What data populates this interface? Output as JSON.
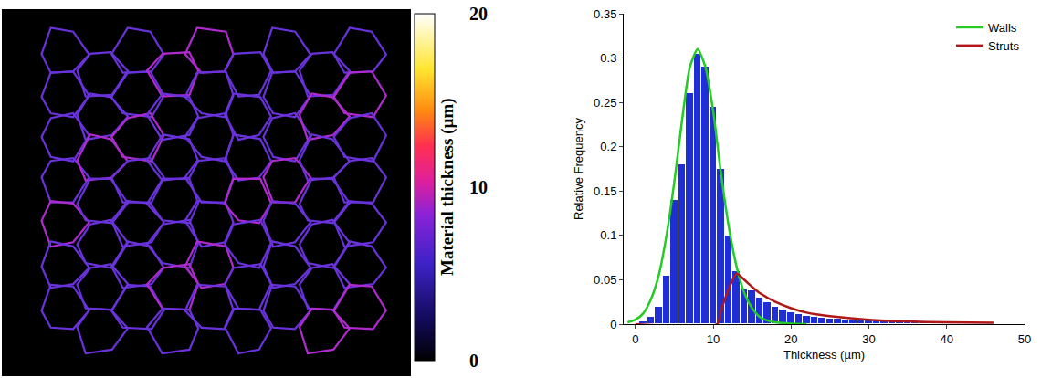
{
  "chart_data": [
    {
      "type": "image",
      "colorbar": {
        "title": "Material thickness (µm)",
        "range": [
          0,
          20
        ],
        "ticks": [
          0,
          10,
          20
        ]
      }
    },
    {
      "type": "histogram",
      "x_label": "Thickness (µm)",
      "y_label": "Relative Frequency",
      "color": "#1f2fd4",
      "bins": [
        0.5,
        1.5,
        2.5,
        3.5,
        4.5,
        5.5,
        6.5,
        7.5,
        8.5,
        9.5,
        10.5,
        11.5,
        12.5,
        13.5,
        14.5,
        15.5,
        16.5,
        17.5,
        18.5,
        19.5,
        20.5,
        21.5,
        22.5,
        23.5,
        24.5,
        25.5,
        26.5,
        27.5,
        28.5,
        29.5,
        30.5,
        31.5,
        32.5,
        33.5,
        34.5,
        35.5,
        36.5,
        37.5,
        38.5,
        39.5,
        40.5,
        41.5,
        42.5,
        43.5,
        44.5,
        45.5,
        46.5
      ],
      "values": [
        0.003,
        0.008,
        0.02,
        0.055,
        0.14,
        0.18,
        0.26,
        0.305,
        0.29,
        0.245,
        0.175,
        0.1,
        0.06,
        0.04,
        0.038,
        0.03,
        0.025,
        0.02,
        0.016,
        0.013,
        0.011,
        0.009,
        0.008,
        0.007,
        0.006,
        0.006,
        0.005,
        0.005,
        0.004,
        0.004,
        0.004,
        0.003,
        0.003,
        0.003,
        0.003,
        0.002,
        0.002,
        0.002,
        0.002,
        0.002,
        0.002,
        0.002,
        0.001,
        0.001,
        0.001,
        0.001
      ],
      "series": [
        {
          "name": "Walls",
          "type": "line",
          "color": "#22cc22",
          "x": [
            -1,
            0,
            1,
            2,
            3,
            4,
            5,
            6,
            7,
            8,
            9,
            10,
            11,
            12,
            13,
            14,
            15,
            16,
            17,
            18,
            20,
            22
          ],
          "values": [
            0.002,
            0.005,
            0.012,
            0.028,
            0.055,
            0.1,
            0.16,
            0.23,
            0.29,
            0.31,
            0.29,
            0.24,
            0.17,
            0.11,
            0.065,
            0.035,
            0.018,
            0.008,
            0.004,
            0.002,
            0.0005,
            0
          ]
        },
        {
          "name": "Struts",
          "type": "line",
          "color": "#b01818",
          "x": [
            0,
            10.5,
            11,
            12,
            13,
            14,
            15,
            16,
            18,
            20,
            22,
            25,
            30,
            35,
            40,
            46
          ],
          "values": [
            0,
            0,
            0.015,
            0.04,
            0.057,
            0.05,
            0.042,
            0.035,
            0.025,
            0.018,
            0.013,
            0.009,
            0.005,
            0.003,
            0.002,
            0.0015
          ]
        }
      ],
      "xlim": [
        -1.5,
        50
      ],
      "ylim": [
        0,
        0.35
      ],
      "xticks": [
        0,
        10,
        20,
        30,
        40,
        50
      ],
      "yticks": [
        0,
        0.05,
        0.1,
        0.15,
        0.2,
        0.25,
        0.3,
        0.35
      ],
      "legend": "upper right",
      "grid": false
    }
  ]
}
